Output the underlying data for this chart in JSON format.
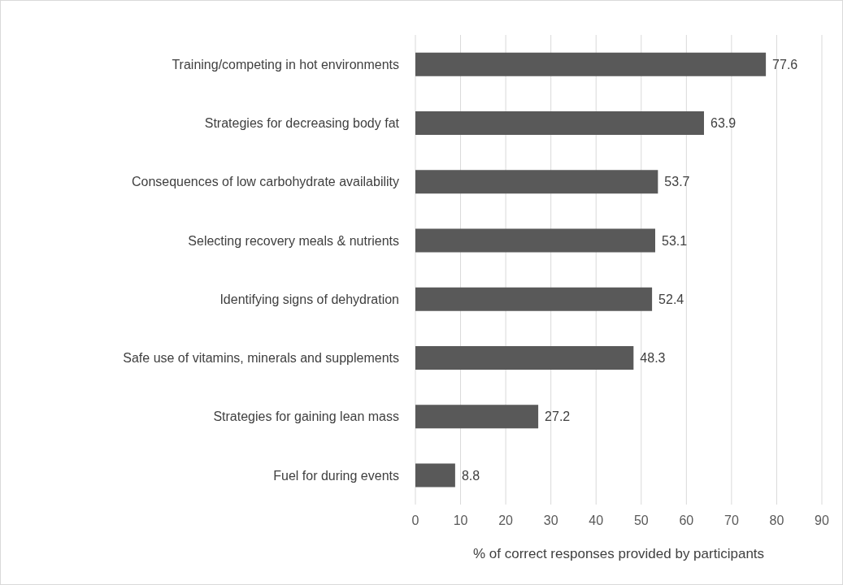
{
  "chart_data": {
    "type": "bar",
    "orientation": "horizontal",
    "xlabel": "% of correct responses provided by participants",
    "categories": [
      "Training/competing in hot environments",
      "Strategies for decreasing body fat",
      "Consequences of low carbohydrate availability",
      "Selecting recovery meals & nutrients",
      "Identifying signs of dehydration",
      "Safe use of vitamins, minerals and supplements",
      "Strategies for gaining lean mass",
      "Fuel for during events"
    ],
    "values": [
      77.6,
      63.9,
      53.7,
      53.1,
      52.4,
      48.3,
      27.2,
      8.8
    ],
    "color": "#595959",
    "xlim": [
      0,
      90
    ],
    "xticks": [
      0,
      10,
      20,
      30,
      40,
      50,
      60,
      70,
      80,
      90
    ],
    "grid": "x",
    "data_labels": true,
    "legend": false
  }
}
